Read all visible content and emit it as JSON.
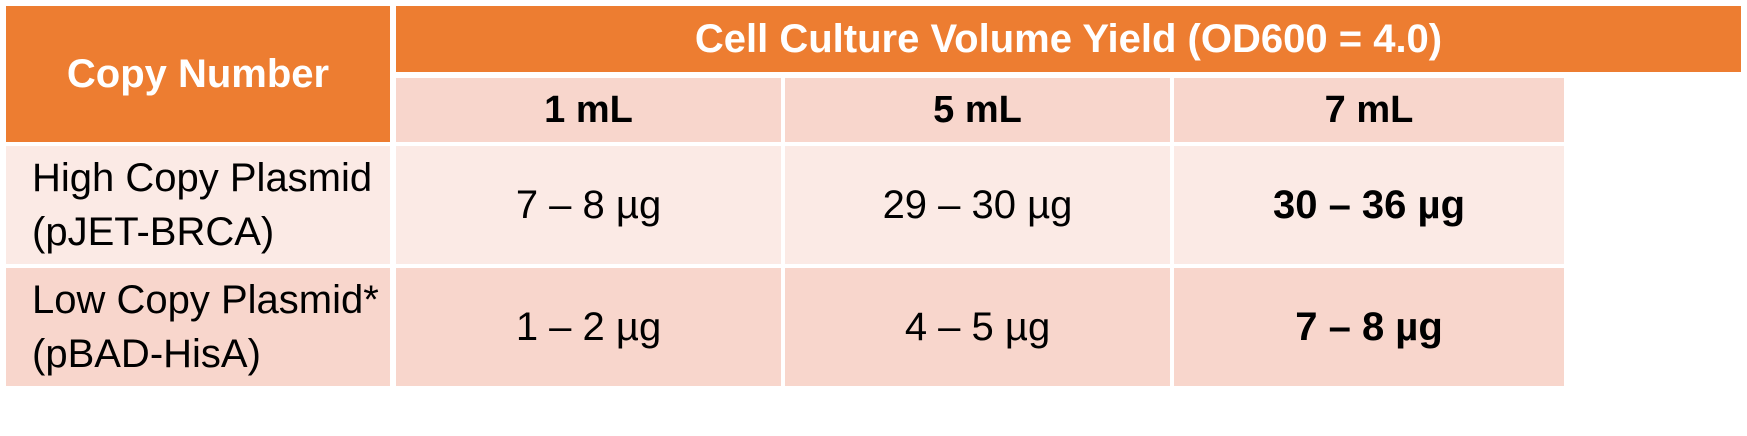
{
  "table": {
    "header": {
      "copy_number": "Copy Number",
      "group_title": "Cell Culture Volume Yield (OD600 = 4.0)",
      "volumes": [
        "1 mL",
        "5 mL",
        "7 mL"
      ]
    },
    "rows": [
      {
        "label_line1": "High Copy Plasmid",
        "label_line2": "(pJET-BRCA)",
        "values": [
          "7 – 8 µg",
          "29 – 30 µg",
          "30 – 36 µg"
        ]
      },
      {
        "label_line1": "Low Copy Plasmid*",
        "label_line2": "(pBAD-HisA)",
        "values": [
          "1 – 2 µg",
          "4 – 5 µg",
          "7 – 8 µg"
        ]
      }
    ],
    "colors": {
      "header_orange": "#ED7D31",
      "row_light": "#FBEAE5",
      "row_medium": "#F8D6CC",
      "grid_line": "#FFFFFF"
    }
  }
}
